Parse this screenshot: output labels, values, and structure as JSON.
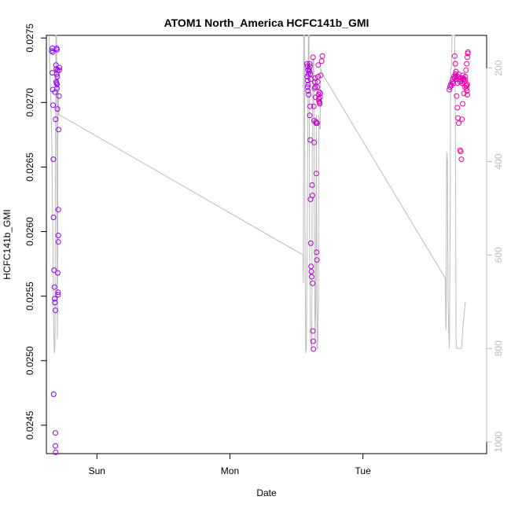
{
  "chart_data": {
    "type": "scatter",
    "title": "ATOM1 North_America HCFC141b_GMI",
    "xlabel": "Date",
    "ylabel": "HCFC141b_GMI",
    "grid": false,
    "x_unit": "days",
    "xlim": [
      -0.38,
      2.93
    ],
    "ylim": [
      0.02428,
      0.02752
    ],
    "x_ticks": [
      {
        "value": 0,
        "label": "Sun"
      },
      {
        "value": 1,
        "label": "Mon"
      },
      {
        "value": 2,
        "label": "Tue"
      }
    ],
    "y_ticks": [
      0.0245,
      0.025,
      0.0255,
      0.026,
      0.0265,
      0.027,
      0.0275
    ],
    "y_tick_labels": [
      "0.0245",
      "0.0250",
      "0.0255",
      "0.0260",
      "0.0265",
      "0.0270",
      "0.0275"
    ],
    "right_axis": {
      "color": "#bbbbbb",
      "ticks": [
        200,
        400,
        600,
        800,
        1000
      ],
      "tick_labels": [
        "200",
        "400",
        "600",
        "800",
        "1000"
      ],
      "lim": [
        130,
        1025
      ],
      "reversed": true,
      "line_color": "#bbbbbb"
    },
    "series": [
      {
        "role": "points",
        "color_start": "#7f00ff",
        "color_end": "#ff0099",
        "points": [
          [
            -0.34,
            0.0274
          ],
          [
            -0.335,
            0.02742
          ],
          [
            -0.332,
            0.02739
          ],
          [
            -0.335,
            0.02723
          ],
          [
            -0.332,
            0.0271
          ],
          [
            -0.33,
            0.02698
          ],
          [
            -0.328,
            0.02656
          ],
          [
            -0.326,
            0.02611
          ],
          [
            -0.322,
            0.0257
          ],
          [
            -0.32,
            0.02557
          ],
          [
            -0.318,
            0.02548
          ],
          [
            -0.316,
            0.02545
          ],
          [
            -0.312,
            0.02539
          ],
          [
            -0.325,
            0.02474
          ],
          [
            -0.312,
            0.02444
          ],
          [
            -0.312,
            0.02434
          ],
          [
            -0.31,
            0.02429
          ],
          [
            -0.315,
            0.02708
          ],
          [
            -0.31,
            0.02687
          ],
          [
            -0.303,
            0.02742
          ],
          [
            -0.3,
            0.02741
          ],
          [
            -0.308,
            0.02729
          ],
          [
            -0.305,
            0.02726
          ],
          [
            -0.302,
            0.02722
          ],
          [
            -0.307,
            0.02716
          ],
          [
            -0.303,
            0.02715
          ],
          [
            -0.3,
            0.02714
          ],
          [
            -0.298,
            0.0272
          ],
          [
            -0.296,
            0.02725
          ],
          [
            -0.3,
            0.02711
          ],
          [
            -0.297,
            0.02695
          ],
          [
            -0.295,
            0.02568
          ],
          [
            -0.292,
            0.02553
          ],
          [
            -0.292,
            0.02551
          ],
          [
            -0.29,
            0.02597
          ],
          [
            -0.29,
            0.02592
          ],
          [
            -0.29,
            0.02617
          ],
          [
            -0.288,
            0.02679
          ],
          [
            -0.285,
            0.02705
          ],
          [
            -0.283,
            0.02725
          ],
          [
            -0.282,
            0.02727
          ],
          [
            1.58,
            0.0273
          ],
          [
            1.583,
            0.02728
          ],
          [
            1.586,
            0.02725
          ],
          [
            1.59,
            0.02722
          ],
          [
            1.582,
            0.0272
          ],
          [
            1.585,
            0.02717
          ],
          [
            1.588,
            0.02714
          ],
          [
            1.584,
            0.02712
          ],
          [
            1.587,
            0.02709
          ],
          [
            1.592,
            0.02706
          ],
          [
            1.595,
            0.02726
          ],
          [
            1.598,
            0.02724
          ],
          [
            1.6,
            0.0273
          ],
          [
            1.602,
            0.02728
          ],
          [
            1.605,
            0.02722
          ],
          [
            1.608,
            0.02718
          ],
          [
            1.603,
            0.02697
          ],
          [
            1.6,
            0.0269
          ],
          [
            1.604,
            0.02671
          ],
          [
            1.606,
            0.02625
          ],
          [
            1.608,
            0.02591
          ],
          [
            1.61,
            0.02573
          ],
          [
            1.612,
            0.02569
          ],
          [
            1.614,
            0.02565
          ],
          [
            1.618,
            0.02636
          ],
          [
            1.62,
            0.02628
          ],
          [
            1.622,
            0.0256
          ],
          [
            1.624,
            0.02523
          ],
          [
            1.626,
            0.02515
          ],
          [
            1.628,
            0.02509
          ],
          [
            1.63,
            0.02697
          ],
          [
            1.632,
            0.02686
          ],
          [
            1.634,
            0.02669
          ],
          [
            1.636,
            0.02711
          ],
          [
            1.638,
            0.02716
          ],
          [
            1.64,
            0.02719
          ],
          [
            1.642,
            0.02712
          ],
          [
            1.644,
            0.02704
          ],
          [
            1.646,
            0.02685
          ],
          [
            1.648,
            0.02684
          ],
          [
            1.65,
            0.02645
          ],
          [
            1.652,
            0.02584
          ],
          [
            1.654,
            0.02578
          ],
          [
            1.656,
            0.02684
          ],
          [
            1.658,
            0.02712
          ],
          [
            1.66,
            0.02716
          ],
          [
            1.662,
            0.0272
          ],
          [
            1.664,
            0.02729
          ],
          [
            1.666,
            0.02706
          ],
          [
            1.668,
            0.02703
          ],
          [
            1.67,
            0.02701
          ],
          [
            1.672,
            0.02708
          ],
          [
            1.674,
            0.027
          ],
          [
            1.676,
            0.02699
          ],
          [
            1.678,
            0.02704
          ],
          [
            1.68,
            0.02707
          ],
          [
            1.682,
            0.02721
          ],
          [
            1.69,
            0.02732
          ],
          [
            1.695,
            0.02736
          ],
          [
            1.625,
            0.02735
          ],
          [
            2.65,
            0.0271
          ],
          [
            2.655,
            0.02712
          ],
          [
            2.66,
            0.02714
          ],
          [
            2.665,
            0.02713
          ],
          [
            2.67,
            0.02716
          ],
          [
            2.675,
            0.02718
          ],
          [
            2.68,
            0.02715
          ],
          [
            2.685,
            0.0272
          ],
          [
            2.69,
            0.02719
          ],
          [
            2.695,
            0.02722
          ],
          [
            2.7,
            0.0272
          ],
          [
            2.705,
            0.02718
          ],
          [
            2.71,
            0.02715
          ],
          [
            2.715,
            0.0272
          ],
          [
            2.72,
            0.02722
          ],
          [
            2.725,
            0.02718
          ],
          [
            2.73,
            0.02716
          ],
          [
            2.735,
            0.02719
          ],
          [
            2.74,
            0.02717
          ],
          [
            2.745,
            0.02715
          ],
          [
            2.748,
            0.02719
          ],
          [
            2.752,
            0.02721
          ],
          [
            2.755,
            0.02718
          ],
          [
            2.76,
            0.02716
          ],
          [
            2.765,
            0.02718
          ],
          [
            2.77,
            0.0272
          ],
          [
            2.775,
            0.02713
          ],
          [
            2.778,
            0.02711
          ],
          [
            2.782,
            0.02709
          ],
          [
            2.785,
            0.02706
          ],
          [
            2.69,
            0.02736
          ],
          [
            2.695,
            0.0273
          ],
          [
            2.7,
            0.02724
          ],
          [
            2.705,
            0.02705
          ],
          [
            2.71,
            0.02696
          ],
          [
            2.715,
            0.02688
          ],
          [
            2.72,
            0.02684
          ],
          [
            2.73,
            0.02663
          ],
          [
            2.735,
            0.02662
          ],
          [
            2.74,
            0.02656
          ],
          [
            2.745,
            0.02687
          ],
          [
            2.75,
            0.02699
          ],
          [
            2.76,
            0.02707
          ],
          [
            2.765,
            0.02712
          ],
          [
            2.77,
            0.02717
          ],
          [
            2.775,
            0.02725
          ],
          [
            2.78,
            0.0273
          ],
          [
            2.785,
            0.02735
          ],
          [
            2.788,
            0.02738
          ],
          [
            2.79,
            0.02739
          ],
          [
            2.785,
            0.02714
          ],
          [
            2.78,
            0.02713
          ]
        ]
      },
      {
        "role": "line",
        "axis": "right",
        "color": "#bbbbbb",
        "points": [
          [
            -0.36,
            130
          ],
          [
            -0.34,
            350
          ],
          [
            -0.33,
            600
          ],
          [
            -0.325,
            760
          ],
          [
            -0.32,
            810
          ],
          [
            -0.315,
            790
          ],
          [
            -0.312,
            450
          ],
          [
            -0.308,
            130
          ],
          [
            -0.303,
            130
          ],
          [
            -0.3,
            600
          ],
          [
            -0.298,
            780
          ],
          [
            -0.296,
            710
          ],
          [
            -0.293,
            280
          ],
          [
            -0.29,
            210
          ],
          [
            -0.287,
            300
          ],
          [
            -0.282,
            300
          ],
          [
            1.55,
            600
          ],
          [
            1.552,
            660
          ],
          [
            1.555,
            130
          ],
          [
            1.56,
            130
          ],
          [
            1.565,
            600
          ],
          [
            1.57,
            810
          ],
          [
            1.575,
            800
          ],
          [
            1.58,
            580
          ],
          [
            1.585,
            380
          ],
          [
            1.59,
            130
          ],
          [
            1.595,
            130
          ],
          [
            1.6,
            600
          ],
          [
            1.605,
            780
          ],
          [
            1.61,
            790
          ],
          [
            1.615,
            800
          ],
          [
            1.62,
            340
          ],
          [
            1.625,
            180
          ],
          [
            1.63,
            180
          ],
          [
            1.635,
            560
          ],
          [
            1.64,
            790
          ],
          [
            1.645,
            700
          ],
          [
            1.65,
            300
          ],
          [
            1.655,
            800
          ],
          [
            1.66,
            800
          ],
          [
            1.665,
            700
          ],
          [
            1.668,
            300
          ],
          [
            1.672,
            330
          ],
          [
            1.68,
            330
          ],
          [
            1.682,
            200
          ],
          [
            1.69,
            210
          ],
          [
            2.62,
            650
          ],
          [
            2.622,
            730
          ],
          [
            2.625,
            760
          ],
          [
            2.63,
            380
          ],
          [
            2.635,
            400
          ],
          [
            2.64,
            700
          ],
          [
            2.645,
            760
          ],
          [
            2.65,
            800
          ],
          [
            2.655,
            550
          ],
          [
            2.66,
            200
          ],
          [
            2.665,
            200
          ],
          [
            2.67,
            130
          ],
          [
            2.69,
            130
          ],
          [
            2.695,
            300
          ],
          [
            2.7,
            780
          ],
          [
            2.705,
            800
          ],
          [
            2.71,
            800
          ],
          [
            2.72,
            800
          ],
          [
            2.73,
            800
          ],
          [
            2.74,
            800
          ],
          [
            2.745,
            790
          ],
          [
            2.75,
            760
          ],
          [
            2.76,
            730
          ],
          [
            2.77,
            700
          ]
        ]
      }
    ]
  }
}
